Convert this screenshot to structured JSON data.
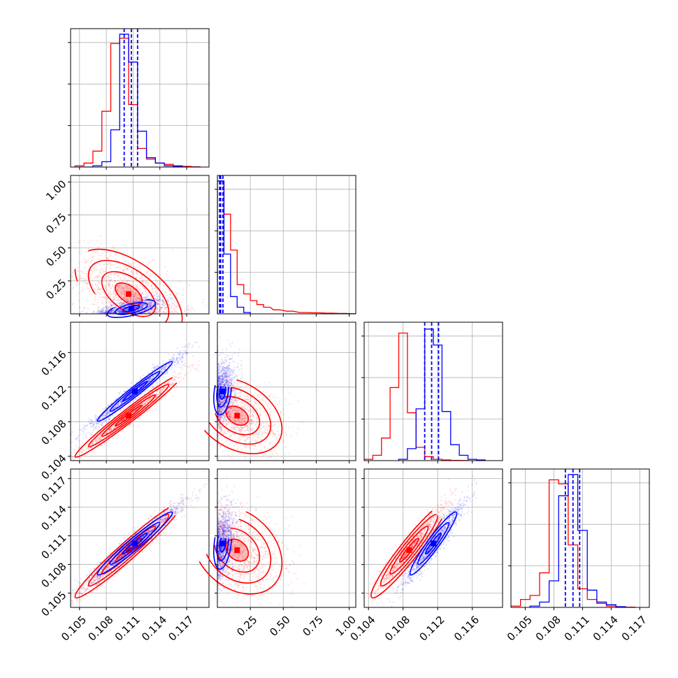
{
  "chart_data": {
    "type": "corner",
    "colors": {
      "series_a": "#ff0000",
      "series_b": "#0000ff",
      "grid": "#b0b0b0"
    },
    "grid": true,
    "parameters": [
      {
        "range": [
          0.104,
          0.1195
        ],
        "ticks": [
          "0.105",
          "0.108",
          "0.111",
          "0.114",
          "0.117"
        ],
        "tick_values": [
          0.105,
          0.108,
          0.111,
          0.114,
          0.117
        ]
      },
      {
        "range": [
          0.0,
          1.05
        ],
        "ticks": [
          "0.25",
          "0.50",
          "0.75",
          "1.00"
        ],
        "tick_values": [
          0.25,
          0.5,
          0.75,
          1.0
        ]
      },
      {
        "range": [
          0.1035,
          0.1195
        ],
        "ticks": [
          "0.104",
          "0.108",
          "0.112",
          "0.116"
        ],
        "tick_values": [
          0.104,
          0.108,
          0.112,
          0.116
        ]
      },
      {
        "range": [
          0.1035,
          0.118
        ],
        "ticks": [
          "0.105",
          "0.108",
          "0.111",
          "0.114",
          "0.117"
        ],
        "tick_values": [
          0.105,
          0.108,
          0.111,
          0.114,
          0.117
        ]
      }
    ],
    "histograms": [
      {
        "param": 0,
        "series_a": {
          "centers": [
            0.105,
            0.106,
            0.107,
            0.108,
            0.109,
            0.11,
            0.111,
            0.112,
            0.113,
            0.114,
            0.115,
            0.116,
            0.117,
            0.118
          ],
          "counts": [
            0.01,
            0.03,
            0.12,
            0.42,
            0.93,
            0.97,
            0.47,
            0.14,
            0.06,
            0.03,
            0.02,
            0.01,
            0.005,
            0.002
          ]
        },
        "series_b": {
          "centers": [
            0.105,
            0.106,
            0.107,
            0.108,
            0.109,
            0.11,
            0.111,
            0.112,
            0.113,
            0.114,
            0.115,
            0.116,
            0.117,
            0.118
          ],
          "counts": [
            0.0,
            0.0,
            0.01,
            0.04,
            0.28,
            1.0,
            0.79,
            0.27,
            0.07,
            0.03,
            0.01,
            0.005,
            0.0,
            0.0
          ]
        },
        "quantile_lines": [
          0.11,
          0.1108,
          0.1115
        ]
      },
      {
        "param": 1,
        "series_a": {
          "centers": [
            0.025,
            0.075,
            0.125,
            0.175,
            0.225,
            0.275,
            0.325,
            0.375,
            0.45,
            0.55,
            0.65,
            0.75,
            0.85,
            0.95,
            1.05
          ],
          "counts": [
            1.0,
            0.75,
            0.48,
            0.22,
            0.15,
            0.1,
            0.07,
            0.05,
            0.03,
            0.02,
            0.01,
            0.008,
            0.005,
            0.003,
            0.001
          ]
        },
        "series_b": {
          "centers": [
            0.025,
            0.075,
            0.125,
            0.175,
            0.225
          ],
          "counts": [
            1.0,
            0.45,
            0.13,
            0.05,
            0.01
          ]
        },
        "quantile_lines": [
          0.017,
          0.025,
          0.042
        ]
      },
      {
        "param": 2,
        "series_a": {
          "centers": [
            0.104,
            0.105,
            0.106,
            0.107,
            0.108,
            0.109,
            0.11,
            0.111,
            0.112,
            0.113,
            0.114,
            0.115
          ],
          "counts": [
            0.01,
            0.04,
            0.17,
            0.55,
            0.96,
            0.36,
            0.1,
            0.03,
            0.01,
            0.005,
            0.002,
            0.001
          ]
        },
        "series_b": {
          "centers": [
            0.108,
            0.109,
            0.11,
            0.111,
            0.112,
            0.113,
            0.114,
            0.115,
            0.116,
            0.117
          ],
          "counts": [
            0.01,
            0.09,
            0.39,
            0.99,
            0.87,
            0.37,
            0.12,
            0.04,
            0.01,
            0.005
          ]
        },
        "quantile_lines": [
          0.1105,
          0.1113,
          0.1121
        ]
      },
      {
        "param": 3,
        "series_a": {
          "centers": [
            0.104,
            0.105,
            0.106,
            0.107,
            0.108,
            0.109,
            0.11,
            0.111,
            0.112,
            0.113,
            0.114,
            0.115,
            0.116
          ],
          "counts": [
            0.01,
            0.06,
            0.09,
            0.26,
            0.96,
            0.93,
            0.47,
            0.14,
            0.06,
            0.03,
            0.01,
            0.005,
            0.002
          ]
        },
        "series_b": {
          "centers": [
            0.106,
            0.107,
            0.108,
            0.109,
            0.11,
            0.111,
            0.112,
            0.113,
            0.114,
            0.115
          ],
          "counts": [
            0.01,
            0.04,
            0.2,
            0.84,
            1.0,
            0.58,
            0.13,
            0.04,
            0.02,
            0.005
          ]
        },
        "quantile_lines": [
          0.1092,
          0.11,
          0.1107
        ]
      }
    ],
    "scatter_panels": [
      {
        "x": 0,
        "y": 1,
        "series_a": {
          "mean": [
            0.1105,
            0.15
          ],
          "sd": [
            0.003,
            0.17
          ],
          "corr": -0.55,
          "clip_low": 0.0
        },
        "series_b": {
          "mean": [
            0.1108,
            0.04
          ],
          "sd": [
            0.0018,
            0.045
          ],
          "corr": 0.6,
          "clip_low": 0.0
        }
      },
      {
        "x": 0,
        "y": 2,
        "series_a": {
          "mean": [
            0.1105,
            0.1087
          ],
          "sd": [
            0.003,
            0.0024
          ],
          "corr": 0.98
        },
        "series_b": {
          "mean": [
            0.1112,
            0.1115
          ],
          "sd": [
            0.0028,
            0.0023
          ],
          "corr": 0.98
        }
      },
      {
        "x": 1,
        "y": 2,
        "series_a": {
          "mean": [
            0.15,
            0.1087
          ],
          "sd": [
            0.17,
            0.0022
          ],
          "corr": -0.35,
          "clip_low": 0.0
        },
        "series_b": {
          "mean": [
            0.04,
            0.1115
          ],
          "sd": [
            0.045,
            0.0018
          ],
          "corr": 0.3,
          "clip_low": 0.0
        }
      },
      {
        "x": 0,
        "y": 3,
        "series_a": {
          "mean": [
            0.1105,
            0.1095
          ],
          "sd": [
            0.003,
            0.0025
          ],
          "corr": 0.97
        },
        "series_b": {
          "mean": [
            0.1112,
            0.1102
          ],
          "sd": [
            0.0028,
            0.0022
          ],
          "corr": 0.97
        }
      },
      {
        "x": 1,
        "y": 3,
        "series_a": {
          "mean": [
            0.15,
            0.1095
          ],
          "sd": [
            0.17,
            0.0023
          ],
          "corr": -0.3,
          "clip_low": 0.0
        },
        "series_b": {
          "mean": [
            0.04,
            0.1102
          ],
          "sd": [
            0.045,
            0.0018
          ],
          "corr": 0.3,
          "clip_low": 0.0
        }
      },
      {
        "x": 2,
        "y": 3,
        "series_a": {
          "mean": [
            0.1087,
            0.1095
          ],
          "sd": [
            0.0022,
            0.0025
          ],
          "corr": 0.95
        },
        "series_b": {
          "mean": [
            0.1115,
            0.1102
          ],
          "sd": [
            0.0018,
            0.0022
          ],
          "corr": 0.95
        }
      }
    ],
    "contour_levels": [
      0.5,
      1.0,
      1.5,
      2.0
    ]
  }
}
